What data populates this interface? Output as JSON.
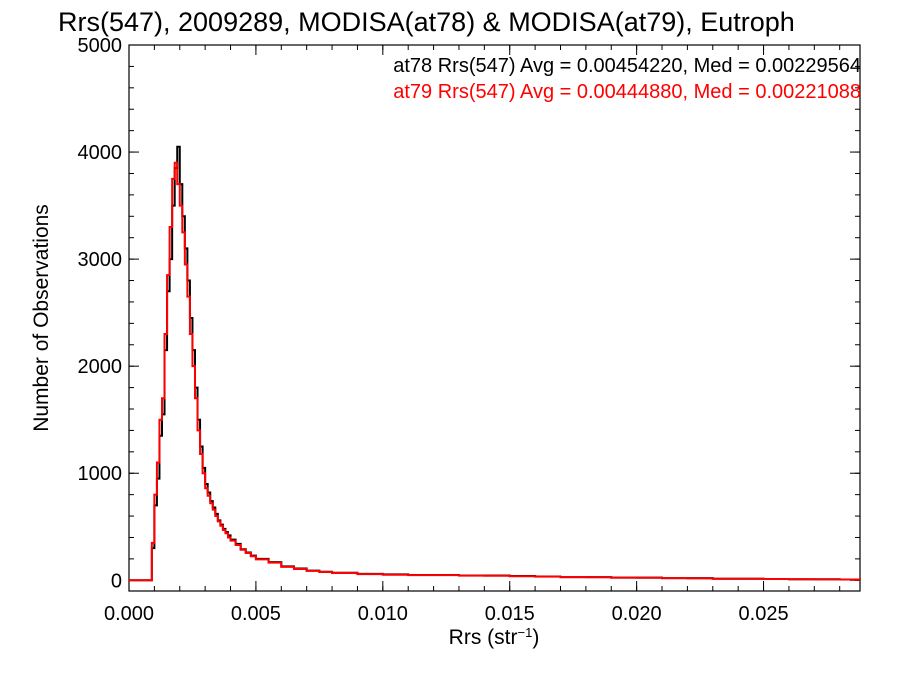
{
  "chart_data": {
    "type": "line",
    "title": "Rrs(547), 2009289, MODISA(at78) & MODISA(at79), Eutroph",
    "xlabel": {
      "base": "Rrs (str",
      "sup": "-1",
      "tail": ")"
    },
    "ylabel": "Number of Observations",
    "xlim": [
      0.0,
      0.0288
    ],
    "ylim": [
      -100,
      5000
    ],
    "x_ticks": [
      0.0,
      0.005,
      0.01,
      0.015,
      0.02,
      0.025
    ],
    "x_tick_labels": [
      "0.000",
      "0.005",
      "0.010",
      "0.015",
      "0.020",
      "0.025"
    ],
    "y_ticks": [
      0,
      1000,
      2000,
      3000,
      4000,
      5000
    ],
    "y_tick_labels": [
      "0",
      "1000",
      "2000",
      "3000",
      "4000",
      "5000"
    ],
    "grid": false,
    "step": "histogram",
    "annotations": [
      {
        "text": "at78 Rrs(547) Avg = 0.00454220, Med = 0.00229564",
        "color": "#000000"
      },
      {
        "text": "at79 Rrs(547) Avg = 0.00444880, Med = 0.00221088",
        "color": "#ff0000"
      }
    ],
    "series": [
      {
        "color": "#000000",
        "x": [
          0.0,
          0.0009,
          0.001,
          0.0011,
          0.0012,
          0.0013,
          0.0014,
          0.0015,
          0.0016,
          0.0017,
          0.0018,
          0.0019,
          0.002,
          0.0021,
          0.0022,
          0.0023,
          0.0024,
          0.0025,
          0.0026,
          0.0027,
          0.0028,
          0.0029,
          0.003,
          0.0031,
          0.0032,
          0.0033,
          0.0034,
          0.0035,
          0.0036,
          0.0037,
          0.0038,
          0.0039,
          0.004,
          0.0042,
          0.0044,
          0.0046,
          0.0048,
          0.005,
          0.0055,
          0.006,
          0.0065,
          0.007,
          0.0075,
          0.008,
          0.009,
          0.01,
          0.011,
          0.012,
          0.013,
          0.014,
          0.015,
          0.016,
          0.017,
          0.018,
          0.019,
          0.02,
          0.021,
          0.022,
          0.023,
          0.024,
          0.025,
          0.026,
          0.027,
          0.028,
          0.0288
        ],
        "y": [
          0,
          300,
          700,
          950,
          1350,
          1550,
          2150,
          2700,
          3000,
          3500,
          3850,
          4050,
          3700,
          3400,
          3100,
          2800,
          2450,
          2150,
          1800,
          1500,
          1250,
          1050,
          900,
          820,
          740,
          680,
          620,
          560,
          520,
          480,
          450,
          420,
          380,
          340,
          290,
          260,
          230,
          200,
          170,
          130,
          110,
          90,
          80,
          70,
          60,
          55,
          50,
          50,
          45,
          45,
          40,
          35,
          30,
          30,
          25,
          25,
          20,
          20,
          15,
          15,
          12,
          10,
          10,
          8,
          5
        ]
      },
      {
        "color": "#ff0000",
        "x": [
          0.0,
          0.0009,
          0.001,
          0.0011,
          0.0012,
          0.0013,
          0.0014,
          0.0015,
          0.0016,
          0.0017,
          0.0018,
          0.0019,
          0.002,
          0.0021,
          0.0022,
          0.0023,
          0.0024,
          0.0025,
          0.0026,
          0.0027,
          0.0028,
          0.0029,
          0.003,
          0.0031,
          0.0032,
          0.0033,
          0.0034,
          0.0035,
          0.0036,
          0.0037,
          0.0038,
          0.0039,
          0.004,
          0.0042,
          0.0044,
          0.0046,
          0.0048,
          0.005,
          0.0055,
          0.006,
          0.0065,
          0.007,
          0.0075,
          0.008,
          0.009,
          0.01,
          0.011,
          0.012,
          0.013,
          0.014,
          0.015,
          0.016,
          0.017,
          0.018,
          0.019,
          0.02,
          0.021,
          0.022,
          0.023,
          0.024,
          0.025,
          0.026,
          0.027,
          0.028,
          0.0288
        ],
        "y": [
          0,
          350,
          800,
          1100,
          1500,
          1700,
          2300,
          2850,
          3300,
          3750,
          3900,
          3700,
          3500,
          3250,
          2950,
          2650,
          2300,
          2000,
          1700,
          1400,
          1180,
          1000,
          860,
          790,
          720,
          660,
          600,
          550,
          510,
          470,
          440,
          400,
          370,
          330,
          285,
          255,
          225,
          195,
          165,
          125,
          105,
          88,
          78,
          68,
          58,
          52,
          48,
          48,
          44,
          42,
          38,
          34,
          30,
          28,
          25,
          24,
          20,
          18,
          15,
          14,
          12,
          10,
          9,
          7,
          5
        ]
      }
    ]
  }
}
